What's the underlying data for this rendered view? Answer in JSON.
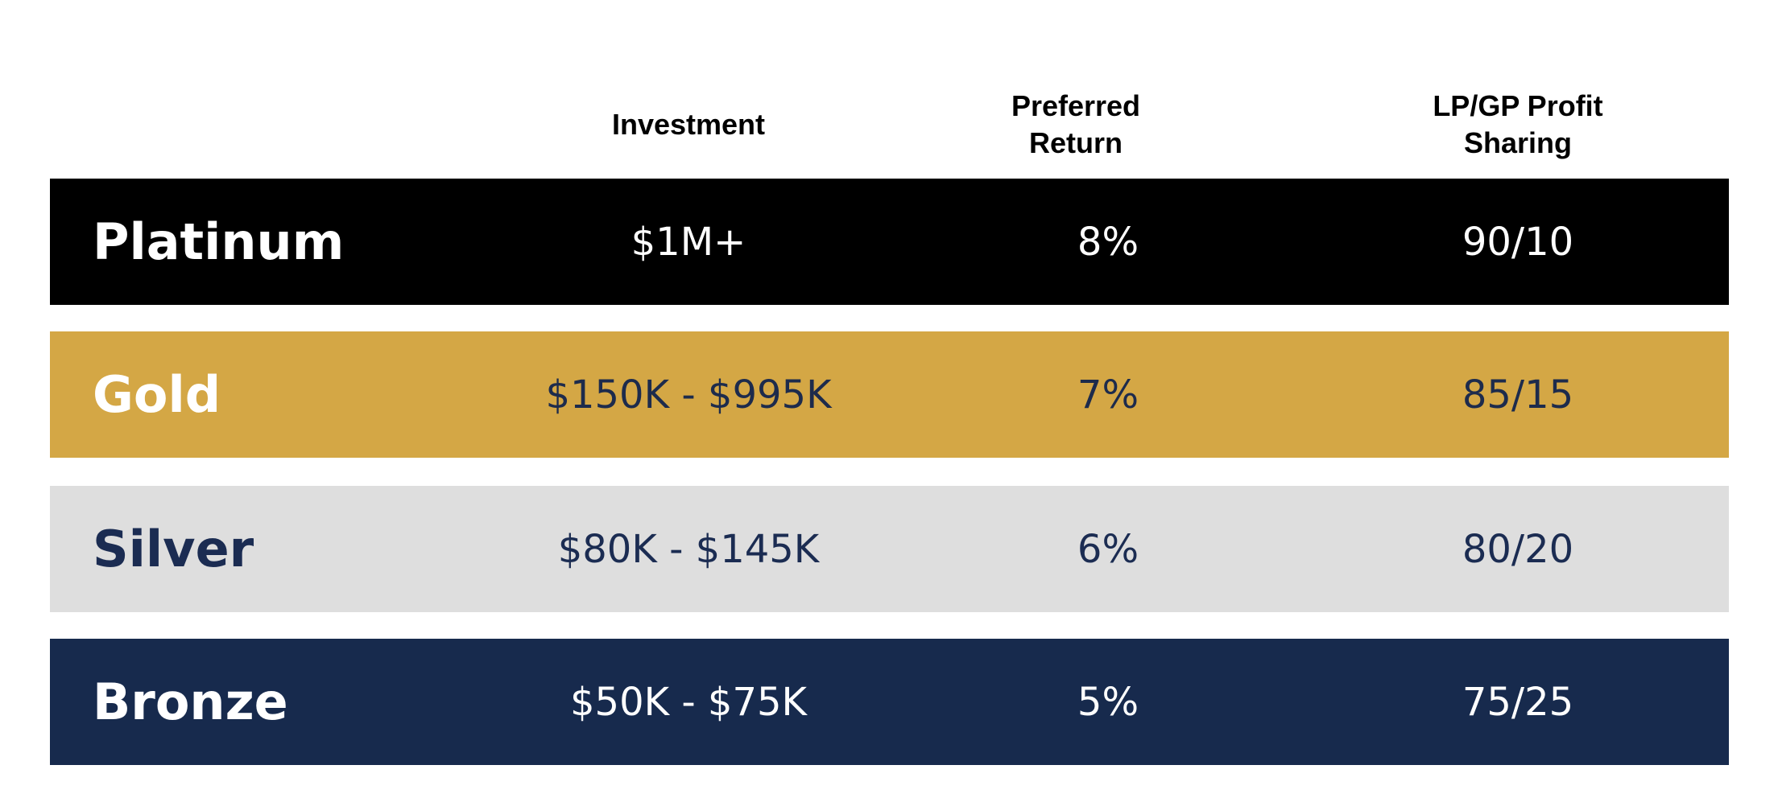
{
  "table": {
    "header": [
      "Investment",
      "Preferred Return",
      "LP/GP Profit Sharing"
    ],
    "rows": [
      [
        "Platinum",
        "$1M+",
        "8%",
        "90/10"
      ],
      [
        "Gold",
        "$150K - $995K",
        "7%",
        "85/15"
      ],
      [
        "Silver",
        "$80K - $145K",
        "6%",
        "80/20"
      ],
      [
        "Bronze",
        "$50K - $75K",
        "5%",
        "75/25"
      ]
    ]
  }
}
